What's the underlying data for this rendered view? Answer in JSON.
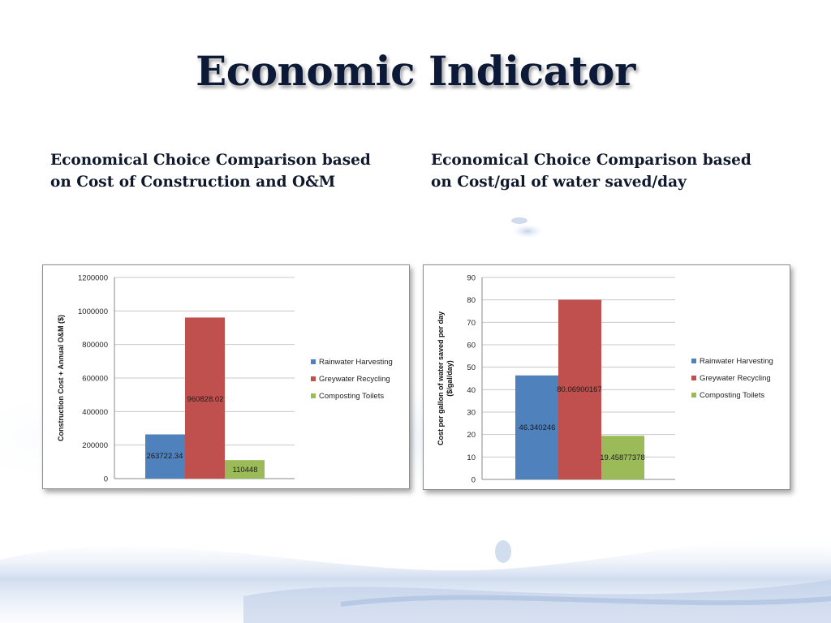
{
  "slide": {
    "title": "Economic Indicator",
    "subheads": [
      "Economical Choice Comparison based on Cost of Construction and O&M",
      "Economical Choice Comparison based on Cost/gal of water saved/day"
    ]
  },
  "colors": {
    "rainwater": "#4f81bd",
    "greywater": "#c0504d",
    "composting": "#9bbb59",
    "title_text": "#0c1a38",
    "background_water": "#c9d7ea"
  },
  "chart_data": [
    {
      "type": "bar",
      "title": "",
      "xlabel": "",
      "ylabel": "Construction Cost + Annual O&M ($)",
      "ylim": [
        0,
        1200000
      ],
      "yticks": [
        0,
        200000,
        400000,
        600000,
        800000,
        1000000,
        1200000
      ],
      "ytick_labels": [
        "0",
        "200000",
        "400000",
        "600000",
        "800000",
        "1000000",
        "1200000"
      ],
      "grid": true,
      "legend_position": "right",
      "series": [
        {
          "name": "Rainwater Harvesting",
          "value": 263722.34,
          "label": "263722.34",
          "color": "#4f81bd"
        },
        {
          "name": "Greywater Recycling",
          "value": 960828.02,
          "label": "960828.02",
          "color": "#c0504d"
        },
        {
          "name": "Composting Toilets",
          "value": 110448,
          "label": "110448",
          "color": "#9bbb59"
        }
      ]
    },
    {
      "type": "bar",
      "title": "",
      "xlabel": "",
      "ylabel": "Cost per gallon of water saved per day ($/gal/day)",
      "ylabel_lines": [
        "Cost per gallon of water saved per day",
        "($/gal/day)"
      ],
      "ylim": [
        0,
        90
      ],
      "yticks": [
        0,
        10,
        20,
        30,
        40,
        50,
        60,
        70,
        80,
        90
      ],
      "ytick_labels": [
        "0",
        "10",
        "20",
        "30",
        "40",
        "50",
        "60",
        "70",
        "80",
        "90"
      ],
      "grid": true,
      "legend_position": "right",
      "series": [
        {
          "name": "Rainwater Harvesting",
          "value": 46.340246,
          "label": "46.340246",
          "color": "#4f81bd"
        },
        {
          "name": "Greywater Recycling",
          "value": 80.06900167,
          "label": "80.06900167",
          "color": "#c0504d"
        },
        {
          "name": "Composting Toilets",
          "value": 19.45877378,
          "label": "19.45877378",
          "color": "#9bbb59"
        }
      ]
    }
  ]
}
